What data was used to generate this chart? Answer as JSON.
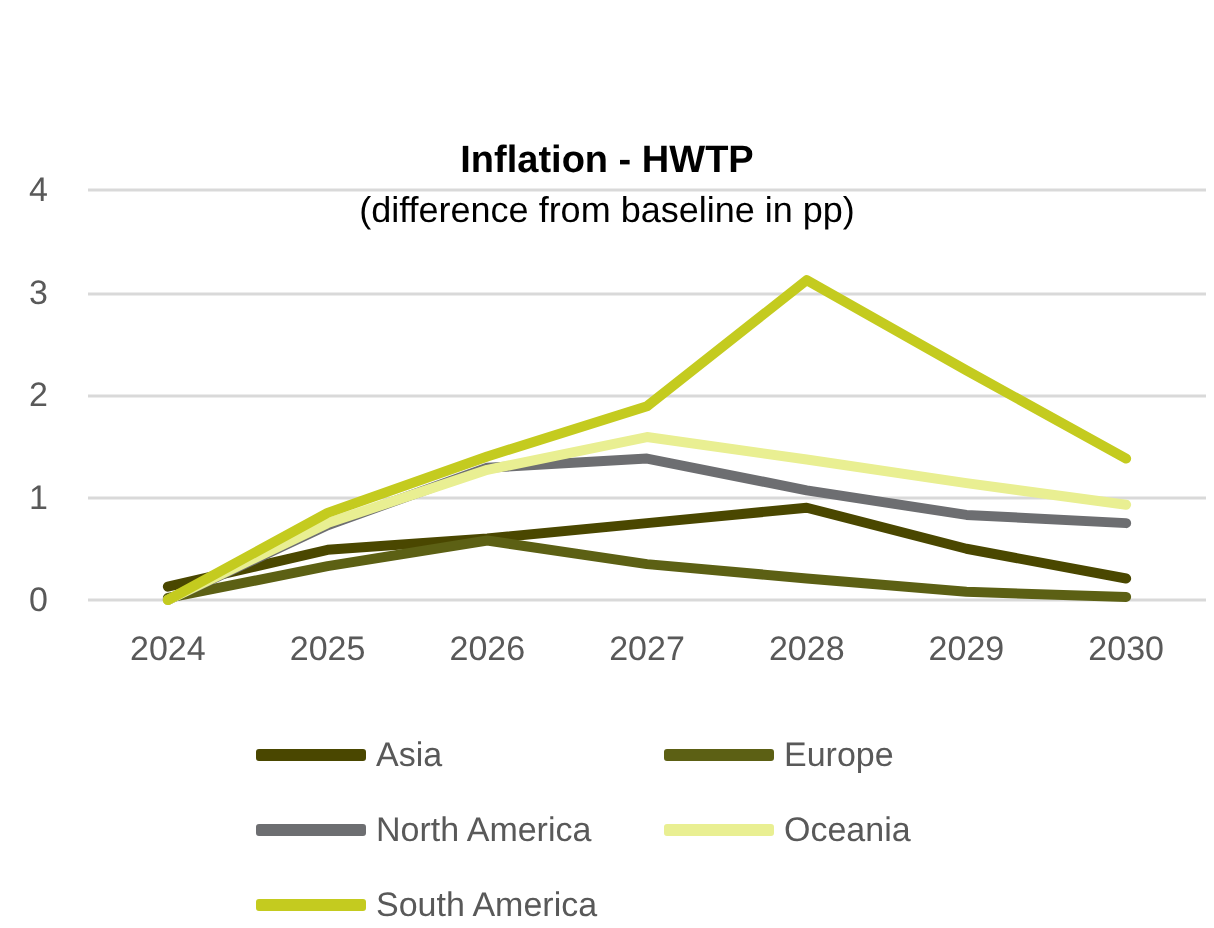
{
  "chart_data": {
    "type": "line",
    "title": "Inflation - HWTP",
    "subtitle": "(difference from baseline in pp)",
    "categories": [
      "2024",
      "2025",
      "2026",
      "2027",
      "2028",
      "2029",
      "2030"
    ],
    "series": [
      {
        "name": "Asia",
        "color": "#4a4700",
        "values": [
          0.13,
          0.49,
          0.6,
          0.75,
          0.9,
          0.5,
          0.21
        ]
      },
      {
        "name": "Europe",
        "color": "#5c6014",
        "values": [
          0.02,
          0.33,
          0.58,
          0.35,
          0.21,
          0.08,
          0.03
        ]
      },
      {
        "name": "North America",
        "color": "#6d6e71",
        "values": [
          0,
          0.73,
          1.29,
          1.38,
          1.07,
          0.83,
          0.75
        ]
      },
      {
        "name": "Oceania",
        "color": "#e9ef92",
        "values": [
          0,
          0.75,
          1.27,
          1.59,
          1.37,
          1.14,
          0.93
        ]
      },
      {
        "name": "South America",
        "color": "#c4cb1f",
        "values": [
          0,
          0.85,
          1.4,
          1.89,
          3.12,
          2.24,
          1.38
        ]
      }
    ],
    "ylim": [
      0,
      4
    ],
    "yticks": [
      0,
      1,
      2,
      3,
      4
    ],
    "grid": "y",
    "legend": "bottom",
    "marker": "none",
    "line_style": "solid"
  }
}
